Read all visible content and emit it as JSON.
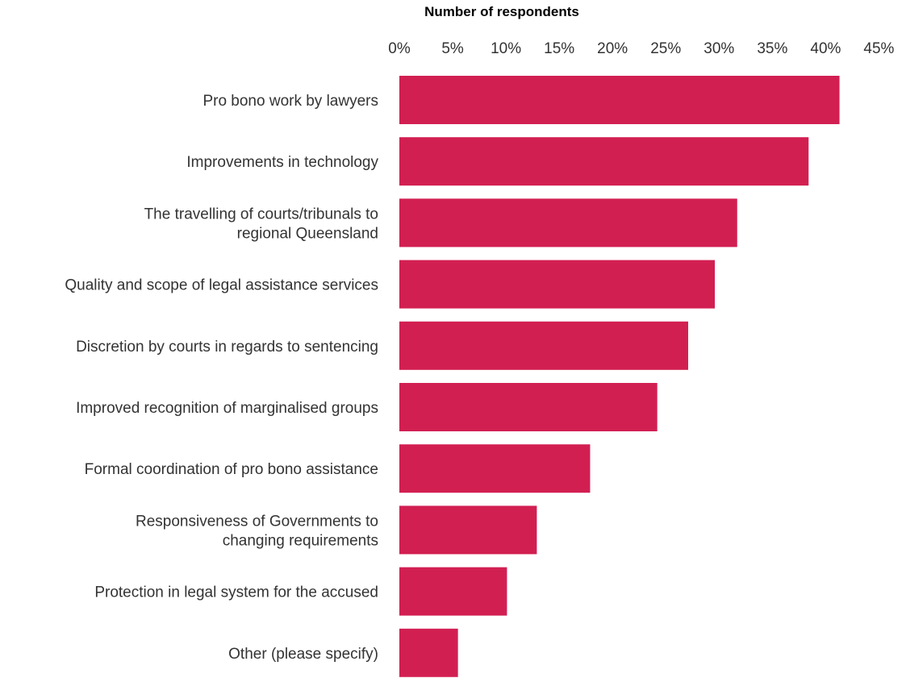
{
  "chart_data": {
    "type": "bar",
    "orientation": "horizontal",
    "title": "",
    "xlabel": "Number of respondents",
    "ylabel": "",
    "xlim": [
      0,
      45
    ],
    "ticks": [
      "0%",
      "5%",
      "10%",
      "15%",
      "20%",
      "25%",
      "30%",
      "35%",
      "40%",
      "45%"
    ],
    "tick_values": [
      0,
      5,
      10,
      15,
      20,
      25,
      30,
      35,
      40,
      45
    ],
    "axis_position": "top",
    "grid": false,
    "legend": "none",
    "bar_color": "#D21F52",
    "categories": [
      [
        "Pro bono work by lawyers"
      ],
      [
        "Improvements in technology"
      ],
      [
        "The travelling of courts/tribunals to",
        "regional Queensland"
      ],
      [
        "Quality and scope of legal assistance services"
      ],
      [
        "Discretion by courts in regards to sentencing"
      ],
      [
        "Improved recognition of marginalised groups"
      ],
      [
        "Formal coordination of pro bono assistance"
      ],
      [
        "Responsiveness of Governments to",
        "changing requirements"
      ],
      [
        "Protection in legal system for the accused"
      ],
      [
        "Other (please specify)"
      ]
    ],
    "values": [
      41.3,
      38.4,
      31.7,
      29.6,
      27.1,
      24.2,
      17.9,
      12.9,
      10.1,
      5.5
    ]
  }
}
